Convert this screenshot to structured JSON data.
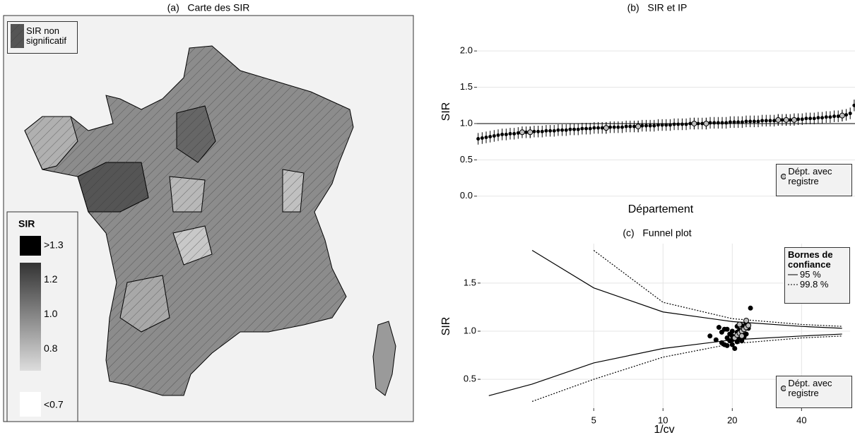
{
  "chart_data": [
    {
      "type": "map",
      "title": "(a)   Carte des SIR",
      "hatch_label": "SIR non significatif",
      "legend_title": "SIR",
      "legend_ticks": [
        {
          "value": 1.3,
          "label": ">1.3"
        },
        1.2,
        {
          "value": 1,
          "label": "1.0"
        },
        0.8,
        {
          "value": 0.7,
          "label": "<0.7"
        }
      ]
    },
    {
      "type": "errorbar",
      "title": "(b)   SIR et IP",
      "ylabel": "SIR",
      "xlabel": "Département",
      "xlim": [
        0.7,
        95.2
      ],
      "ylim": [
        -0.08,
        2.41
      ],
      "yticks": [
        {
          "value": 0,
          "label": "0.0"
        },
        {
          "value": 0.5,
          "label": "0.5"
        },
        {
          "value": 1,
          "label": "1.0"
        },
        {
          "value": 1.5,
          "label": "1.5"
        },
        {
          "value": 2,
          "label": "2.0"
        }
      ],
      "refline": 1,
      "error": 0.08,
      "grid": true,
      "legend": "bottom-right",
      "series": [
        {
          "color": "#000000",
          "x": [
            1,
            2,
            3,
            4,
            5,
            6,
            7,
            8,
            9,
            10,
            11,
            12,
            13,
            14,
            15,
            16,
            17,
            18,
            19,
            20,
            21,
            22,
            23,
            24,
            25,
            26,
            27,
            28,
            29,
            30,
            31,
            32,
            33,
            34,
            35,
            36,
            37,
            38,
            39,
            40,
            41,
            42,
            43,
            44,
            45,
            46,
            47,
            48,
            49,
            50,
            51,
            52,
            53,
            54,
            55,
            56,
            57,
            58,
            59,
            60,
            61,
            62,
            63,
            64,
            65,
            66,
            67,
            68,
            69,
            70,
            71,
            72,
            73,
            74,
            75,
            76,
            77,
            78,
            79,
            80,
            81,
            82,
            83,
            84,
            85,
            86,
            87,
            88,
            89,
            90,
            91,
            92,
            93,
            94,
            95
          ],
          "values": [
            0.79,
            0.8,
            0.81,
            0.82,
            0.83,
            0.84,
            0.85,
            0.85,
            0.86,
            0.86,
            0.87,
            0.88,
            0.88,
            0.88,
            0.89,
            0.89,
            0.89,
            0.9,
            0.9,
            0.9,
            0.91,
            0.91,
            0.91,
            0.92,
            0.92,
            0.92,
            0.93,
            0.93,
            0.93,
            0.94,
            0.94,
            0.94,
            0.94,
            0.95,
            0.95,
            0.95,
            0.95,
            0.96,
            0.96,
            0.96,
            0.96,
            0.97,
            0.97,
            0.97,
            0.97,
            0.98,
            0.98,
            0.98,
            0.98,
            0.99,
            0.99,
            0.99,
            0.99,
            1.0,
            1.0,
            1.0,
            1.0,
            1.0,
            1.01,
            1.01,
            1.01,
            1.01,
            1.01,
            1.02,
            1.02,
            1.02,
            1.02,
            1.03,
            1.03,
            1.03,
            1.03,
            1.04,
            1.04,
            1.04,
            1.04,
            1.05,
            1.05,
            1.05,
            1.05,
            1.06,
            1.06,
            1.06,
            1.07,
            1.07,
            1.07,
            1.08,
            1.08,
            1.09,
            1.09,
            1.1,
            1.1,
            1.11,
            1.12,
            1.14,
            1.25
          ]
        },
        {
          "name": "Dépt. avec registre",
          "color": "#bdbdbd",
          "x": [
            12,
            14,
            33,
            41,
            55,
            58,
            76,
            78,
            80,
            92
          ],
          "values": [
            0.88,
            0.88,
            0.94,
            0.96,
            1.0,
            1.0,
            1.05,
            1.05,
            1.05,
            1.11
          ]
        }
      ]
    },
    {
      "type": "scatter",
      "title": "(c)   Funnel plot",
      "ylabel": "SIR",
      "xlabel": "1/cv",
      "xscale": "log",
      "xlim": [
        1.61,
        65
      ],
      "ylim": [
        0.2,
        1.91
      ],
      "xticks": [
        5,
        10,
        20,
        40
      ],
      "yticks": [
        0.5,
        {
          "value": 1,
          "label": "1.0"
        },
        1.5
      ],
      "grid": true,
      "bands_title": "Bornes de confiance",
      "bands_legend": "top-right",
      "legend": "bottom-right",
      "bands": [
        {
          "name": "95 %",
          "dash": "solid",
          "x": [
            1.75,
            2.7,
            5,
            10,
            20,
            40,
            60
          ],
          "upper": [
            null,
            1.84,
            1.45,
            1.2,
            1.1,
            1.05,
            1.03
          ],
          "lower": [
            0.33,
            0.45,
            0.67,
            0.82,
            0.91,
            0.95,
            0.97
          ]
        },
        {
          "name": "99.8 %",
          "dash": "dotted",
          "x": [
            2.7,
            5,
            10,
            20,
            40,
            60
          ],
          "upper": [
            null,
            1.84,
            1.3,
            1.13,
            1.07,
            1.05
          ],
          "lower": [
            0.27,
            0.5,
            0.73,
            0.87,
            0.93,
            0.95
          ]
        }
      ],
      "series": [
        {
          "color": "#000000",
          "x": [
            16,
            17,
            17.5,
            18,
            18,
            18.5,
            19,
            19,
            19.5,
            19.5,
            20,
            20,
            20,
            20.5,
            20.5,
            21,
            21,
            21,
            21.5,
            21.5,
            22,
            22,
            22,
            22.5,
            22.5,
            23,
            23,
            23.5,
            24,
            18.5,
            19,
            20,
            21,
            22,
            23
          ],
          "values": [
            0.95,
            0.91,
            1.04,
            0.88,
            0.99,
            0.86,
            0.93,
            1.02,
            0.9,
            0.97,
            0.86,
            0.95,
            1.0,
            0.82,
            0.92,
            0.89,
            0.96,
            1.05,
            0.93,
            1.01,
            0.9,
            0.98,
            1.06,
            0.94,
            1.02,
            0.97,
            1.08,
            1.03,
            1.24,
            1.02,
            0.85,
            0.91,
            0.99,
            0.95,
            1.1
          ]
        },
        {
          "name": "Dépt. avec registre",
          "color": "#bdbdbd",
          "x": [
            20.5,
            21,
            21.5,
            22,
            22.5,
            23,
            23,
            22,
            21.5,
            23.5
          ],
          "values": [
            0.93,
            0.96,
            0.98,
            1.0,
            1.02,
            1.04,
            1.11,
            0.95,
            1.07,
            1.06
          ]
        }
      ]
    }
  ]
}
